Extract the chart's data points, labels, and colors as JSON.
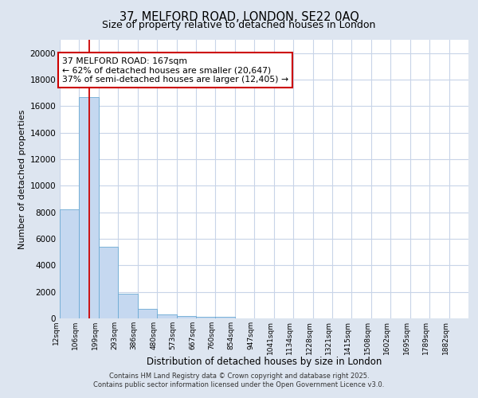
{
  "title_line1": "37, MELFORD ROAD, LONDON, SE22 0AQ",
  "title_line2": "Size of property relative to detached houses in London",
  "xlabel": "Distribution of detached houses by size in London",
  "ylabel": "Number of detached properties",
  "bar_values": [
    8200,
    16700,
    5400,
    1850,
    700,
    320,
    200,
    130,
    100,
    0,
    0,
    0,
    0,
    0,
    0,
    0,
    0,
    0,
    0,
    0
  ],
  "x_labels": [
    "12sqm",
    "106sqm",
    "199sqm",
    "293sqm",
    "386sqm",
    "480sqm",
    "573sqm",
    "667sqm",
    "760sqm",
    "854sqm",
    "947sqm",
    "1041sqm",
    "1134sqm",
    "1228sqm",
    "1321sqm",
    "1415sqm",
    "1508sqm",
    "1602sqm",
    "1695sqm",
    "1789sqm",
    "1882sqm"
  ],
  "bar_color": "#c5d8f0",
  "bar_edge_color": "#6baad4",
  "vline_x": 1.5,
  "vline_color": "#cc0000",
  "annotation_text": "37 MELFORD ROAD: 167sqm\n← 62% of detached houses are smaller (20,647)\n37% of semi-detached houses are larger (12,405) →",
  "annotation_box_color": "#ffffff",
  "annotation_box_edge_color": "#cc0000",
  "ylim": [
    0,
    21000
  ],
  "yticks": [
    0,
    2000,
    4000,
    6000,
    8000,
    10000,
    12000,
    14000,
    16000,
    18000,
    20000
  ],
  "fig_bg_color": "#dde5f0",
  "plot_bg_color": "#ffffff",
  "grid_color": "#c8d4e8",
  "footer_line1": "Contains HM Land Registry data © Crown copyright and database right 2025.",
  "footer_line2": "Contains public sector information licensed under the Open Government Licence v3.0."
}
